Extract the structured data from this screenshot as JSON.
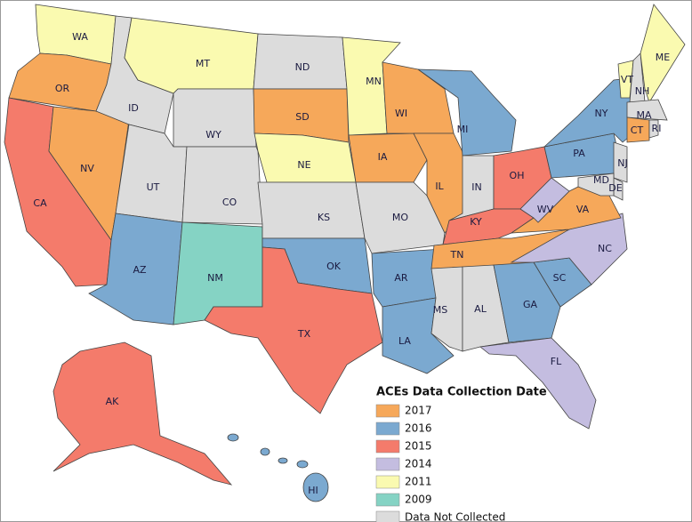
{
  "legend": {
    "title": "ACEs Data Collection Date",
    "items": [
      {
        "label": "2017",
        "color": "#f6a85a"
      },
      {
        "label": "2016",
        "color": "#7ba9d0"
      },
      {
        "label": "2015",
        "color": "#f47b6b"
      },
      {
        "label": "2014",
        "color": "#c4bde0"
      },
      {
        "label": "2011",
        "color": "#fafab0"
      },
      {
        "label": "2009",
        "color": "#85d3c4"
      },
      {
        "label": "Data Not Collected",
        "color": "#dcdcdc"
      }
    ]
  },
  "states": [
    {
      "label": "WA",
      "category": "2011"
    },
    {
      "label": "OR",
      "category": "2017"
    },
    {
      "label": "CA",
      "category": "2015"
    },
    {
      "label": "NV",
      "category": "2017"
    },
    {
      "label": "ID",
      "category": "Data Not Collected"
    },
    {
      "label": "MT",
      "category": "2011"
    },
    {
      "label": "WY",
      "category": "Data Not Collected"
    },
    {
      "label": "UT",
      "category": "Data Not Collected"
    },
    {
      "label": "CO",
      "category": "Data Not Collected"
    },
    {
      "label": "AZ",
      "category": "2016"
    },
    {
      "label": "NM",
      "category": "2009"
    },
    {
      "label": "ND",
      "category": "Data Not Collected"
    },
    {
      "label": "SD",
      "category": "2017"
    },
    {
      "label": "NE",
      "category": "2011"
    },
    {
      "label": "KS",
      "category": "Data Not Collected"
    },
    {
      "label": "OK",
      "category": "2016"
    },
    {
      "label": "TX",
      "category": "2015"
    },
    {
      "label": "MN",
      "category": "2011"
    },
    {
      "label": "IA",
      "category": "2017"
    },
    {
      "label": "MO",
      "category": "Data Not Collected"
    },
    {
      "label": "AR",
      "category": "2016"
    },
    {
      "label": "LA",
      "category": "2016"
    },
    {
      "label": "WI",
      "category": "2017"
    },
    {
      "label": "IL",
      "category": "2017"
    },
    {
      "label": "MI",
      "category": "2016"
    },
    {
      "label": "IN",
      "category": "Data Not Collected"
    },
    {
      "label": "OH",
      "category": "2015"
    },
    {
      "label": "KY",
      "category": "2015"
    },
    {
      "label": "TN",
      "category": "2017"
    },
    {
      "label": "MS",
      "category": "Data Not Collected"
    },
    {
      "label": "AL",
      "category": "Data Not Collected"
    },
    {
      "label": "GA",
      "category": "2016"
    },
    {
      "label": "FL",
      "category": "2014"
    },
    {
      "label": "SC",
      "category": "2016"
    },
    {
      "label": "NC",
      "category": "2014"
    },
    {
      "label": "VA",
      "category": "2017"
    },
    {
      "label": "WV",
      "category": "2014"
    },
    {
      "label": "PA",
      "category": "2016"
    },
    {
      "label": "NY",
      "category": "2016"
    },
    {
      "label": "VT",
      "category": "2011"
    },
    {
      "label": "NH",
      "category": "Data Not Collected"
    },
    {
      "label": "ME",
      "category": "2011"
    },
    {
      "label": "MA",
      "category": "Data Not Collected"
    },
    {
      "label": "CT",
      "category": "2017"
    },
    {
      "label": "RI",
      "category": "Data Not Collected"
    },
    {
      "label": "NJ",
      "category": "Data Not Collected"
    },
    {
      "label": "DE",
      "category": "Data Not Collected"
    },
    {
      "label": "MD",
      "category": "Data Not Collected"
    },
    {
      "label": "AK",
      "category": "2015"
    },
    {
      "label": "HI",
      "category": "2016"
    }
  ]
}
